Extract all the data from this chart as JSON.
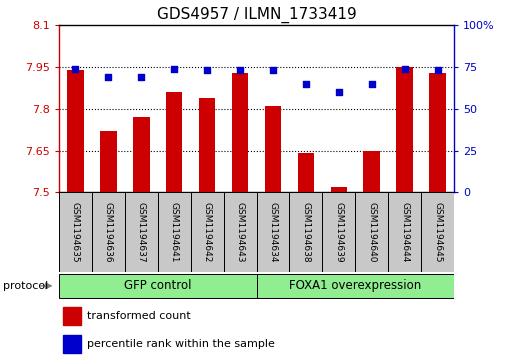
{
  "title": "GDS4957 / ILMN_1733419",
  "samples": [
    "GSM1194635",
    "GSM1194636",
    "GSM1194637",
    "GSM1194641",
    "GSM1194642",
    "GSM1194643",
    "GSM1194634",
    "GSM1194638",
    "GSM1194639",
    "GSM1194640",
    "GSM1194644",
    "GSM1194645"
  ],
  "transformed_count": [
    7.94,
    7.72,
    7.77,
    7.86,
    7.84,
    7.93,
    7.81,
    7.64,
    7.52,
    7.65,
    7.95,
    7.93
  ],
  "percentile_rank": [
    74,
    69,
    69,
    74,
    73,
    73,
    73,
    65,
    60,
    65,
    74,
    73
  ],
  "ylim_left": [
    7.5,
    8.1
  ],
  "ylim_right": [
    0,
    100
  ],
  "yticks_left": [
    7.5,
    7.65,
    7.8,
    7.95,
    8.1
  ],
  "yticks_right": [
    0,
    25,
    50,
    75,
    100
  ],
  "ytick_labels_left": [
    "7.5",
    "7.65",
    "7.8",
    "7.95",
    "8.1"
  ],
  "ytick_labels_right": [
    "0",
    "25",
    "50",
    "75",
    "100%"
  ],
  "groups": [
    {
      "label": "GFP control",
      "start": 0,
      "end": 5
    },
    {
      "label": "FOXA1 overexpression",
      "start": 6,
      "end": 11
    }
  ],
  "group_color": "#90EE90",
  "bar_color": "#CC0000",
  "dot_color": "#0000CC",
  "bar_width": 0.5,
  "sample_box_color": "#C8C8C8",
  "legend_items": [
    {
      "color": "#CC0000",
      "label": "transformed count"
    },
    {
      "color": "#0000CC",
      "label": "percentile rank within the sample"
    }
  ],
  "left_axis_color": "#CC0000",
  "right_axis_color": "#0000CC",
  "protocol_label": "protocol"
}
